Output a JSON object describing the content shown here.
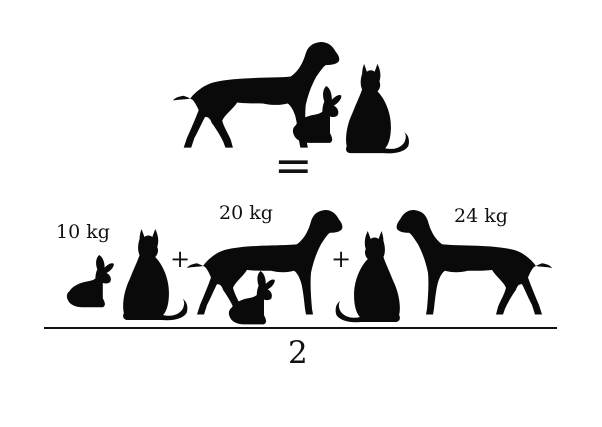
{
  "groups": {
    "top": {
      "animals": [
        "dog",
        "rabbit",
        "cat"
      ]
    },
    "left": {
      "animals": [
        "rabbit",
        "cat"
      ],
      "weight": "10 kg"
    },
    "middle": {
      "animals": [
        "dog",
        "rabbit"
      ],
      "weight": "20 kg"
    },
    "right": {
      "animals": [
        "cat",
        "dog"
      ],
      "weight": "24 kg"
    }
  },
  "operators": {
    "equals": "=",
    "plus": "+"
  },
  "divisor": "2",
  "colors": {
    "silhouette": "#0a0a0a",
    "background": "#ffffff"
  }
}
